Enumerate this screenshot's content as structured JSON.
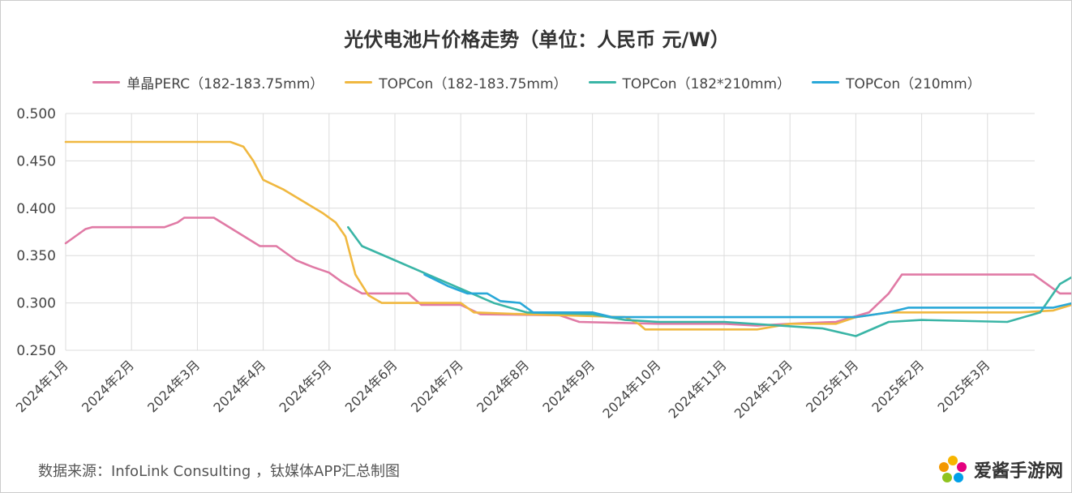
{
  "chart_data": {
    "type": "line",
    "title": "光伏电池片价格走势（单位：人民币 元/W）",
    "xlabel": "",
    "ylabel": "",
    "ylim": [
      0.25,
      0.5
    ],
    "yticks": [
      "0.500",
      "0.450",
      "0.400",
      "0.350",
      "0.300",
      "0.250"
    ],
    "categories": [
      "2024年1月",
      "2024年2月",
      "2024年3月",
      "2024年4月",
      "2024年5月",
      "2024年6月",
      "2024年7月",
      "2024年8月",
      "2024年9月",
      "2024年10月",
      "2024年11月",
      "2024年12月",
      "2025年1月",
      "2025年2月",
      "2025年3月"
    ],
    "x_unit": "month index (0 = 2024年1月)",
    "grid": true,
    "legend": "top",
    "series": [
      {
        "name": "单晶PERC（182-183.75mm）",
        "color": "#e07aa5",
        "points": [
          [
            0,
            0.363
          ],
          [
            0.3,
            0.378
          ],
          [
            0.4,
            0.38
          ],
          [
            1.5,
            0.38
          ],
          [
            1.7,
            0.385
          ],
          [
            1.8,
            0.39
          ],
          [
            2.25,
            0.39
          ],
          [
            2.6,
            0.375
          ],
          [
            2.95,
            0.36
          ],
          [
            3.2,
            0.36
          ],
          [
            3.5,
            0.345
          ],
          [
            3.75,
            0.338
          ],
          [
            4.0,
            0.332
          ],
          [
            4.2,
            0.322
          ],
          [
            4.5,
            0.31
          ],
          [
            5.2,
            0.31
          ],
          [
            5.4,
            0.298
          ],
          [
            6.0,
            0.298
          ],
          [
            6.3,
            0.288
          ],
          [
            7.5,
            0.287
          ],
          [
            7.8,
            0.28
          ],
          [
            9.0,
            0.278
          ],
          [
            10.0,
            0.278
          ],
          [
            10.5,
            0.276
          ],
          [
            11.0,
            0.278
          ],
          [
            11.7,
            0.28
          ],
          [
            12.2,
            0.29
          ],
          [
            12.5,
            0.31
          ],
          [
            12.7,
            0.33
          ],
          [
            14.7,
            0.33
          ],
          [
            15.1,
            0.31
          ],
          [
            15.6,
            0.31
          ]
        ]
      },
      {
        "name": "TOPCon（182-183.75mm）",
        "color": "#f0b840",
        "points": [
          [
            0,
            0.47
          ],
          [
            2.5,
            0.47
          ],
          [
            2.7,
            0.465
          ],
          [
            2.85,
            0.45
          ],
          [
            3.0,
            0.43
          ],
          [
            3.3,
            0.42
          ],
          [
            3.9,
            0.395
          ],
          [
            4.1,
            0.385
          ],
          [
            4.25,
            0.37
          ],
          [
            4.4,
            0.33
          ],
          [
            4.6,
            0.308
          ],
          [
            4.8,
            0.3
          ],
          [
            6.0,
            0.3
          ],
          [
            6.2,
            0.29
          ],
          [
            7.0,
            0.288
          ],
          [
            8.5,
            0.285
          ],
          [
            8.7,
            0.278
          ],
          [
            8.8,
            0.272
          ],
          [
            10.5,
            0.272
          ],
          [
            11.0,
            0.278
          ],
          [
            11.7,
            0.278
          ],
          [
            12.0,
            0.285
          ],
          [
            12.5,
            0.29
          ],
          [
            14.5,
            0.29
          ],
          [
            15.0,
            0.292
          ],
          [
            15.6,
            0.305
          ]
        ]
      },
      {
        "name": "TOPCon（182*210mm）",
        "color": "#3ab5a6",
        "points": [
          [
            4.29,
            0.38
          ],
          [
            4.5,
            0.36
          ],
          [
            5.0,
            0.345
          ],
          [
            5.5,
            0.33
          ],
          [
            6.0,
            0.315
          ],
          [
            6.5,
            0.3
          ],
          [
            7.0,
            0.29
          ],
          [
            8.0,
            0.288
          ],
          [
            8.5,
            0.282
          ],
          [
            9.0,
            0.28
          ],
          [
            10.0,
            0.28
          ],
          [
            11.5,
            0.273
          ],
          [
            12.0,
            0.265
          ],
          [
            12.5,
            0.28
          ],
          [
            13.0,
            0.282
          ],
          [
            14.3,
            0.28
          ],
          [
            14.8,
            0.29
          ],
          [
            15.1,
            0.32
          ],
          [
            15.6,
            0.34
          ]
        ]
      },
      {
        "name": "TOPCon（210mm）",
        "color": "#29a8d8",
        "points": [
          [
            5.45,
            0.33
          ],
          [
            5.8,
            0.318
          ],
          [
            6.1,
            0.31
          ],
          [
            6.4,
            0.31
          ],
          [
            6.6,
            0.302
          ],
          [
            6.9,
            0.3
          ],
          [
            7.1,
            0.29
          ],
          [
            8.0,
            0.29
          ],
          [
            8.3,
            0.285
          ],
          [
            12.0,
            0.285
          ],
          [
            12.5,
            0.29
          ],
          [
            12.8,
            0.295
          ],
          [
            15.0,
            0.295
          ],
          [
            15.3,
            0.3
          ],
          [
            15.6,
            0.3
          ]
        ]
      }
    ]
  },
  "source": "数据来源：InfoLink Consulting ，钛媒体APP汇总制图",
  "watermark": "爱酱手游网"
}
